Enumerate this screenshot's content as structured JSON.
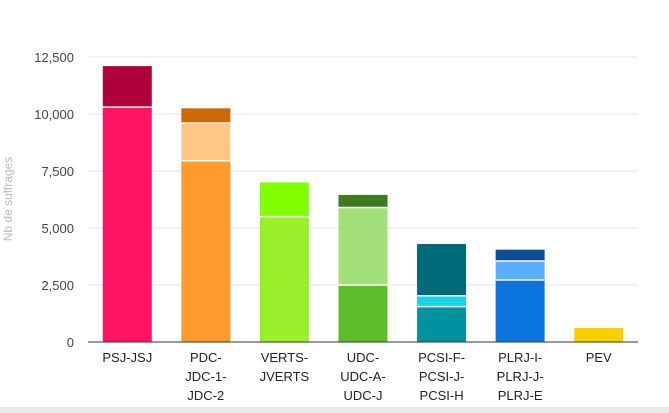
{
  "chart_data": {
    "type": "bar",
    "stacked": true,
    "ylabel": "Nb de suffrages",
    "ylim": [
      0,
      13500
    ],
    "yticks": [
      0,
      2500,
      5000,
      7500,
      10000,
      12500
    ],
    "ytick_labels": [
      "0",
      "2,500",
      "5,000",
      "7,500",
      "10,000",
      "12,500"
    ],
    "grid": true,
    "categories": [
      {
        "lines": [
          "PSJ-JSJ"
        ],
        "segments": [
          {
            "value": 10300,
            "color": "#ff1464"
          },
          {
            "value": 1800,
            "color": "#b00039"
          }
        ]
      },
      {
        "lines": [
          "PDC-",
          "JDC-1-",
          "JDC-2"
        ],
        "segments": [
          {
            "value": 7950,
            "color": "#ff9a2e"
          },
          {
            "value": 1650,
            "color": "#ffc685"
          },
          {
            "value": 650,
            "color": "#cc6a0a"
          }
        ]
      },
      {
        "lines": [
          "VERTS-",
          "JVERTS"
        ],
        "segments": [
          {
            "value": 5500,
            "color": "#99f02a"
          },
          {
            "value": 1500,
            "color": "#80ff00"
          }
        ]
      },
      {
        "lines": [
          "UDC-",
          "UDC-A-",
          "UDC-J"
        ],
        "segments": [
          {
            "value": 2500,
            "color": "#5fbd2a"
          },
          {
            "value": 3400,
            "color": "#a3e07a"
          },
          {
            "value": 550,
            "color": "#3e7b1f"
          }
        ]
      },
      {
        "lines": [
          "PCSI-F-",
          "PCSI-J-",
          "PCSI-H"
        ],
        "segments": [
          {
            "value": 1550,
            "color": "#00929e"
          },
          {
            "value": 480,
            "color": "#1ad3e6"
          },
          {
            "value": 2270,
            "color": "#006b78"
          }
        ]
      },
      {
        "lines": [
          "PLRJ-I-",
          "PLRJ-J-",
          "PLRJ-E"
        ],
        "segments": [
          {
            "value": 2720,
            "color": "#0b74dc"
          },
          {
            "value": 830,
            "color": "#5aaeff"
          },
          {
            "value": 500,
            "color": "#0a4f96"
          }
        ]
      },
      {
        "lines": [
          "PEV"
        ],
        "segments": [
          {
            "value": 620,
            "color": "#f8d000"
          }
        ]
      }
    ]
  }
}
